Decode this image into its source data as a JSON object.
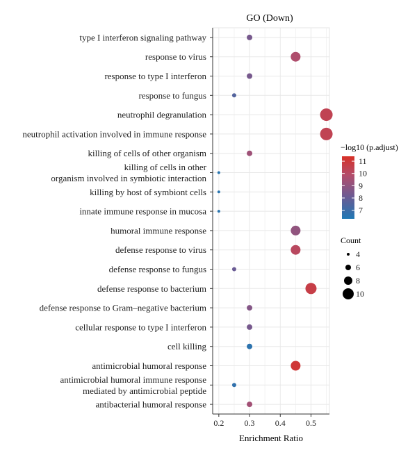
{
  "chart_data": {
    "type": "scatter",
    "title": "GO (Down)",
    "xlabel": "Enrichment Ratio",
    "ylabel": "",
    "xlim": [
      0.18,
      0.56
    ],
    "x_ticks": [
      0.2,
      0.3,
      0.4,
      0.5
    ],
    "x_tick_labels": [
      "0.2",
      "0.3",
      "0.4",
      "0.5"
    ],
    "grid": true,
    "legend_position": "right",
    "categories": [
      "type I interferon signaling pathway",
      "response to virus",
      "response to type I interferon",
      "response to fungus",
      "neutrophil degranulation",
      "neutrophil activation involved in immune response",
      "killing of cells of other organism",
      "killing of cells in other\norganism involved in symbiotic interaction",
      "killing by host of symbiont cells",
      "innate immune response in mucosa",
      "humoral immune response",
      "defense response to virus",
      "defense response to fungus",
      "defense response to bacterium",
      "defense response to Gram–negative bacterium",
      "cellular response to type I interferon",
      "cell killing",
      "antimicrobial humoral response",
      "antimicrobial humoral immune response\nmediated by antimicrobial peptide",
      "antibacterial humoral response"
    ],
    "x": [
      0.3,
      0.45,
      0.3,
      0.25,
      0.55,
      0.55,
      0.3,
      0.2,
      0.2,
      0.2,
      0.45,
      0.45,
      0.25,
      0.5,
      0.3,
      0.3,
      0.3,
      0.45,
      0.25,
      0.3
    ],
    "count": [
      6,
      9,
      6,
      5,
      11,
      11,
      6,
      4,
      4,
      4,
      9,
      9,
      5,
      10,
      6,
      6,
      6,
      9,
      5,
      6
    ],
    "neg_log10_padj": [
      8.3,
      9.6,
      8.3,
      7.5,
      10.3,
      10.3,
      9.2,
      6.5,
      6.5,
      6.5,
      8.9,
      10.0,
      8.0,
      10.6,
      8.6,
      8.3,
      6.6,
      11.0,
      6.7,
      9.3
    ],
    "color_legend": {
      "title": "−log10 (p.adjust)",
      "ticks": [
        7,
        8,
        9,
        10,
        11
      ],
      "range": [
        6.3,
        11.4
      ],
      "colors": [
        "#1f78b4",
        "#6a5b94",
        "#b34d6b",
        "#d73027"
      ]
    },
    "size_legend": {
      "title": "Count",
      "values": [
        4,
        6,
        8,
        10
      ],
      "labels": [
        "4",
        "6",
        "8",
        "10"
      ]
    }
  }
}
